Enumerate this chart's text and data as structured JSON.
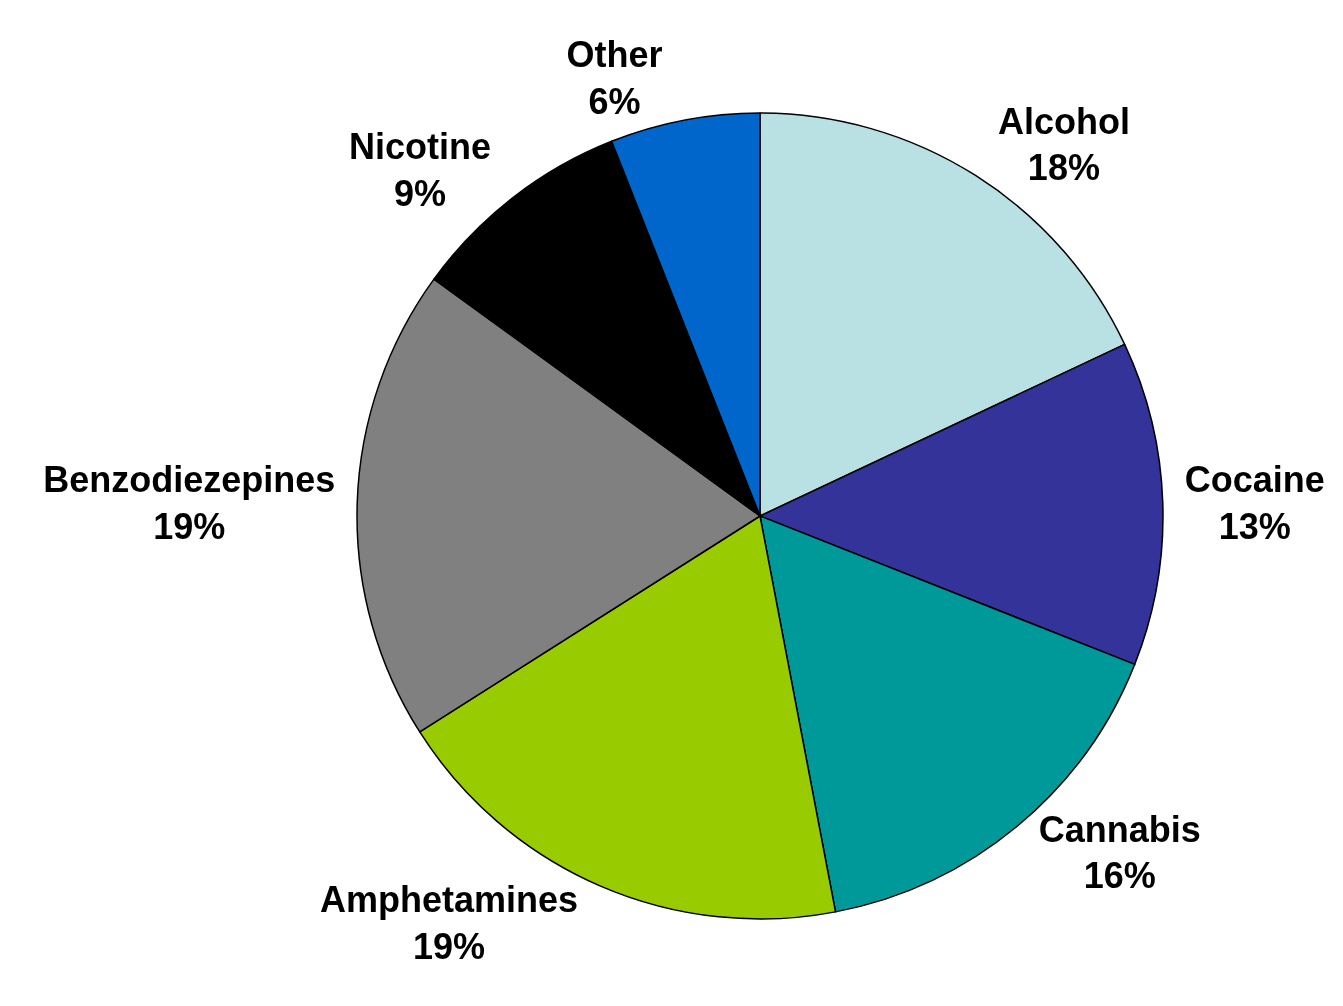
{
  "chart_data": {
    "type": "pie",
    "categories": [
      "Alcohol",
      "Cocaine",
      "Cannabis",
      "Amphetamines",
      "Benzodiezepines",
      "Nicotine",
      "Other"
    ],
    "values": [
      18,
      13,
      16,
      19,
      19,
      9,
      6
    ],
    "colors": [
      "#b9e0e3",
      "#333399",
      "#009999",
      "#99cc00",
      "#808080",
      "#000000",
      "#0066cc"
    ],
    "value_labels": [
      "18%",
      "13%",
      "16%",
      "19%",
      "19%",
      "9%",
      "6%"
    ]
  }
}
